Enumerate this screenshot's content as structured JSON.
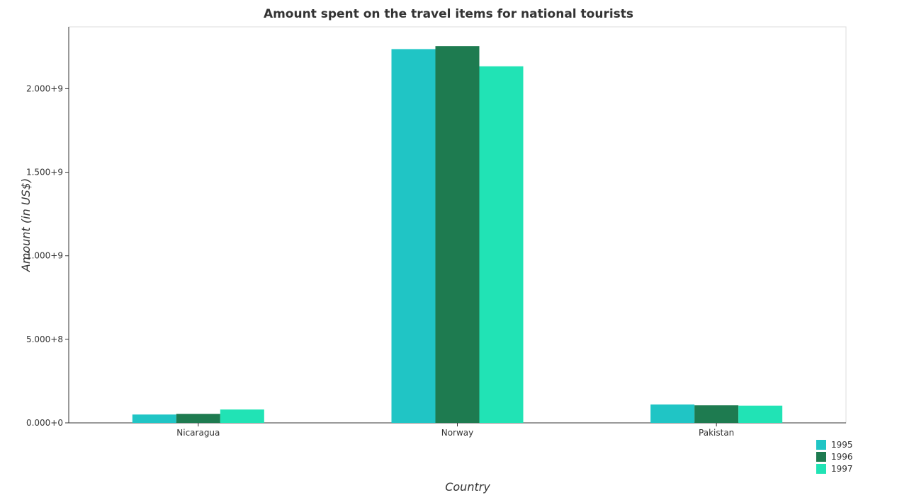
{
  "chart_data": {
    "type": "bar",
    "title": "Amount spent on the travel items for national tourists",
    "xlabel": "Country",
    "ylabel": "Amount (in US$)",
    "categories": [
      "Nicaragua",
      "Norway",
      "Pakistan"
    ],
    "series": [
      {
        "name": "1995",
        "color": "#20c5c5",
        "values": [
          50000000,
          2237000000,
          110000000
        ]
      },
      {
        "name": "1996",
        "color": "#1e7b50",
        "values": [
          54000000,
          2255000000,
          105000000
        ]
      },
      {
        "name": "1997",
        "color": "#21e3b5",
        "values": [
          80000000,
          2134000000,
          103000000
        ]
      }
    ],
    "yticks": [
      0,
      500000000,
      1000000000,
      1500000000,
      2000000000
    ],
    "ytick_labels": [
      "0.000+0",
      "5.000+8",
      "1.000+9",
      "1.500+9",
      "2.000+9"
    ],
    "ylim": [
      0,
      2370000000
    ],
    "grid": false,
    "legend_position": "bottom-right"
  }
}
